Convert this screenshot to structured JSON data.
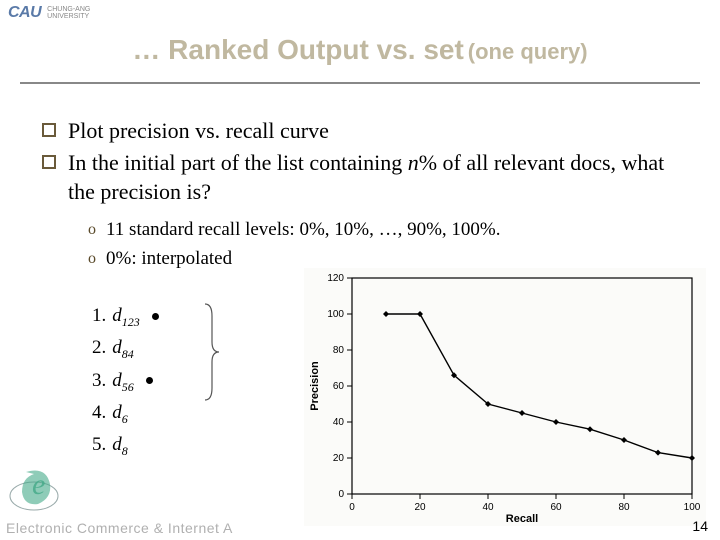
{
  "brand": {
    "name": "CAU",
    "tagline1": "CHUNG-ANG",
    "tagline2": "UNIVERSITY"
  },
  "title": {
    "main": "… Ranked Output vs. set",
    "sub": "(one query)"
  },
  "bullets": [
    {
      "text": "Plot precision vs. recall curve"
    },
    {
      "text_parts": [
        "In the initial part of the list containing ",
        "n",
        "% of all relevant docs, what the precision is?"
      ]
    }
  ],
  "sub_bullets": [
    {
      "text": "11 standard recall levels: 0%, 10%, …, 90%, 100%."
    },
    {
      "text": "0%: interpolated"
    }
  ],
  "doc_list": [
    {
      "n": "1.",
      "d": "d",
      "sub": "123",
      "marked": true
    },
    {
      "n": "2.",
      "d": "d",
      "sub": "84",
      "marked": false
    },
    {
      "n": "3.",
      "d": "d",
      "sub": "56",
      "marked": true
    },
    {
      "n": "4.",
      "d": "d",
      "sub": "6",
      "marked": false
    },
    {
      "n": "5.",
      "d": "d",
      "sub": "8",
      "marked": false
    }
  ],
  "chart": {
    "type": "line",
    "xlabel": "Recall",
    "ylabel": "Precision",
    "xlim": [
      0,
      100
    ],
    "ylim": [
      0,
      120
    ],
    "xticks": [
      0,
      20,
      40,
      60,
      80,
      100
    ],
    "yticks": [
      0,
      20,
      40,
      60,
      80,
      100,
      120
    ],
    "points": [
      {
        "x": 10,
        "y": 100
      },
      {
        "x": 20,
        "y": 100
      },
      {
        "x": 30,
        "y": 66
      },
      {
        "x": 40,
        "y": 50
      },
      {
        "x": 50,
        "y": 45
      },
      {
        "x": 60,
        "y": 40
      },
      {
        "x": 70,
        "y": 36
      },
      {
        "x": 80,
        "y": 30
      },
      {
        "x": 90,
        "y": 23
      },
      {
        "x": 100,
        "y": 20
      }
    ],
    "line_color": "#000000",
    "marker": "diamond",
    "marker_size": 6,
    "background_color": "#fbfbf9",
    "axis_color": "#000000"
  },
  "footer": "Electronic Commerce & Internet A",
  "page_number": "14"
}
